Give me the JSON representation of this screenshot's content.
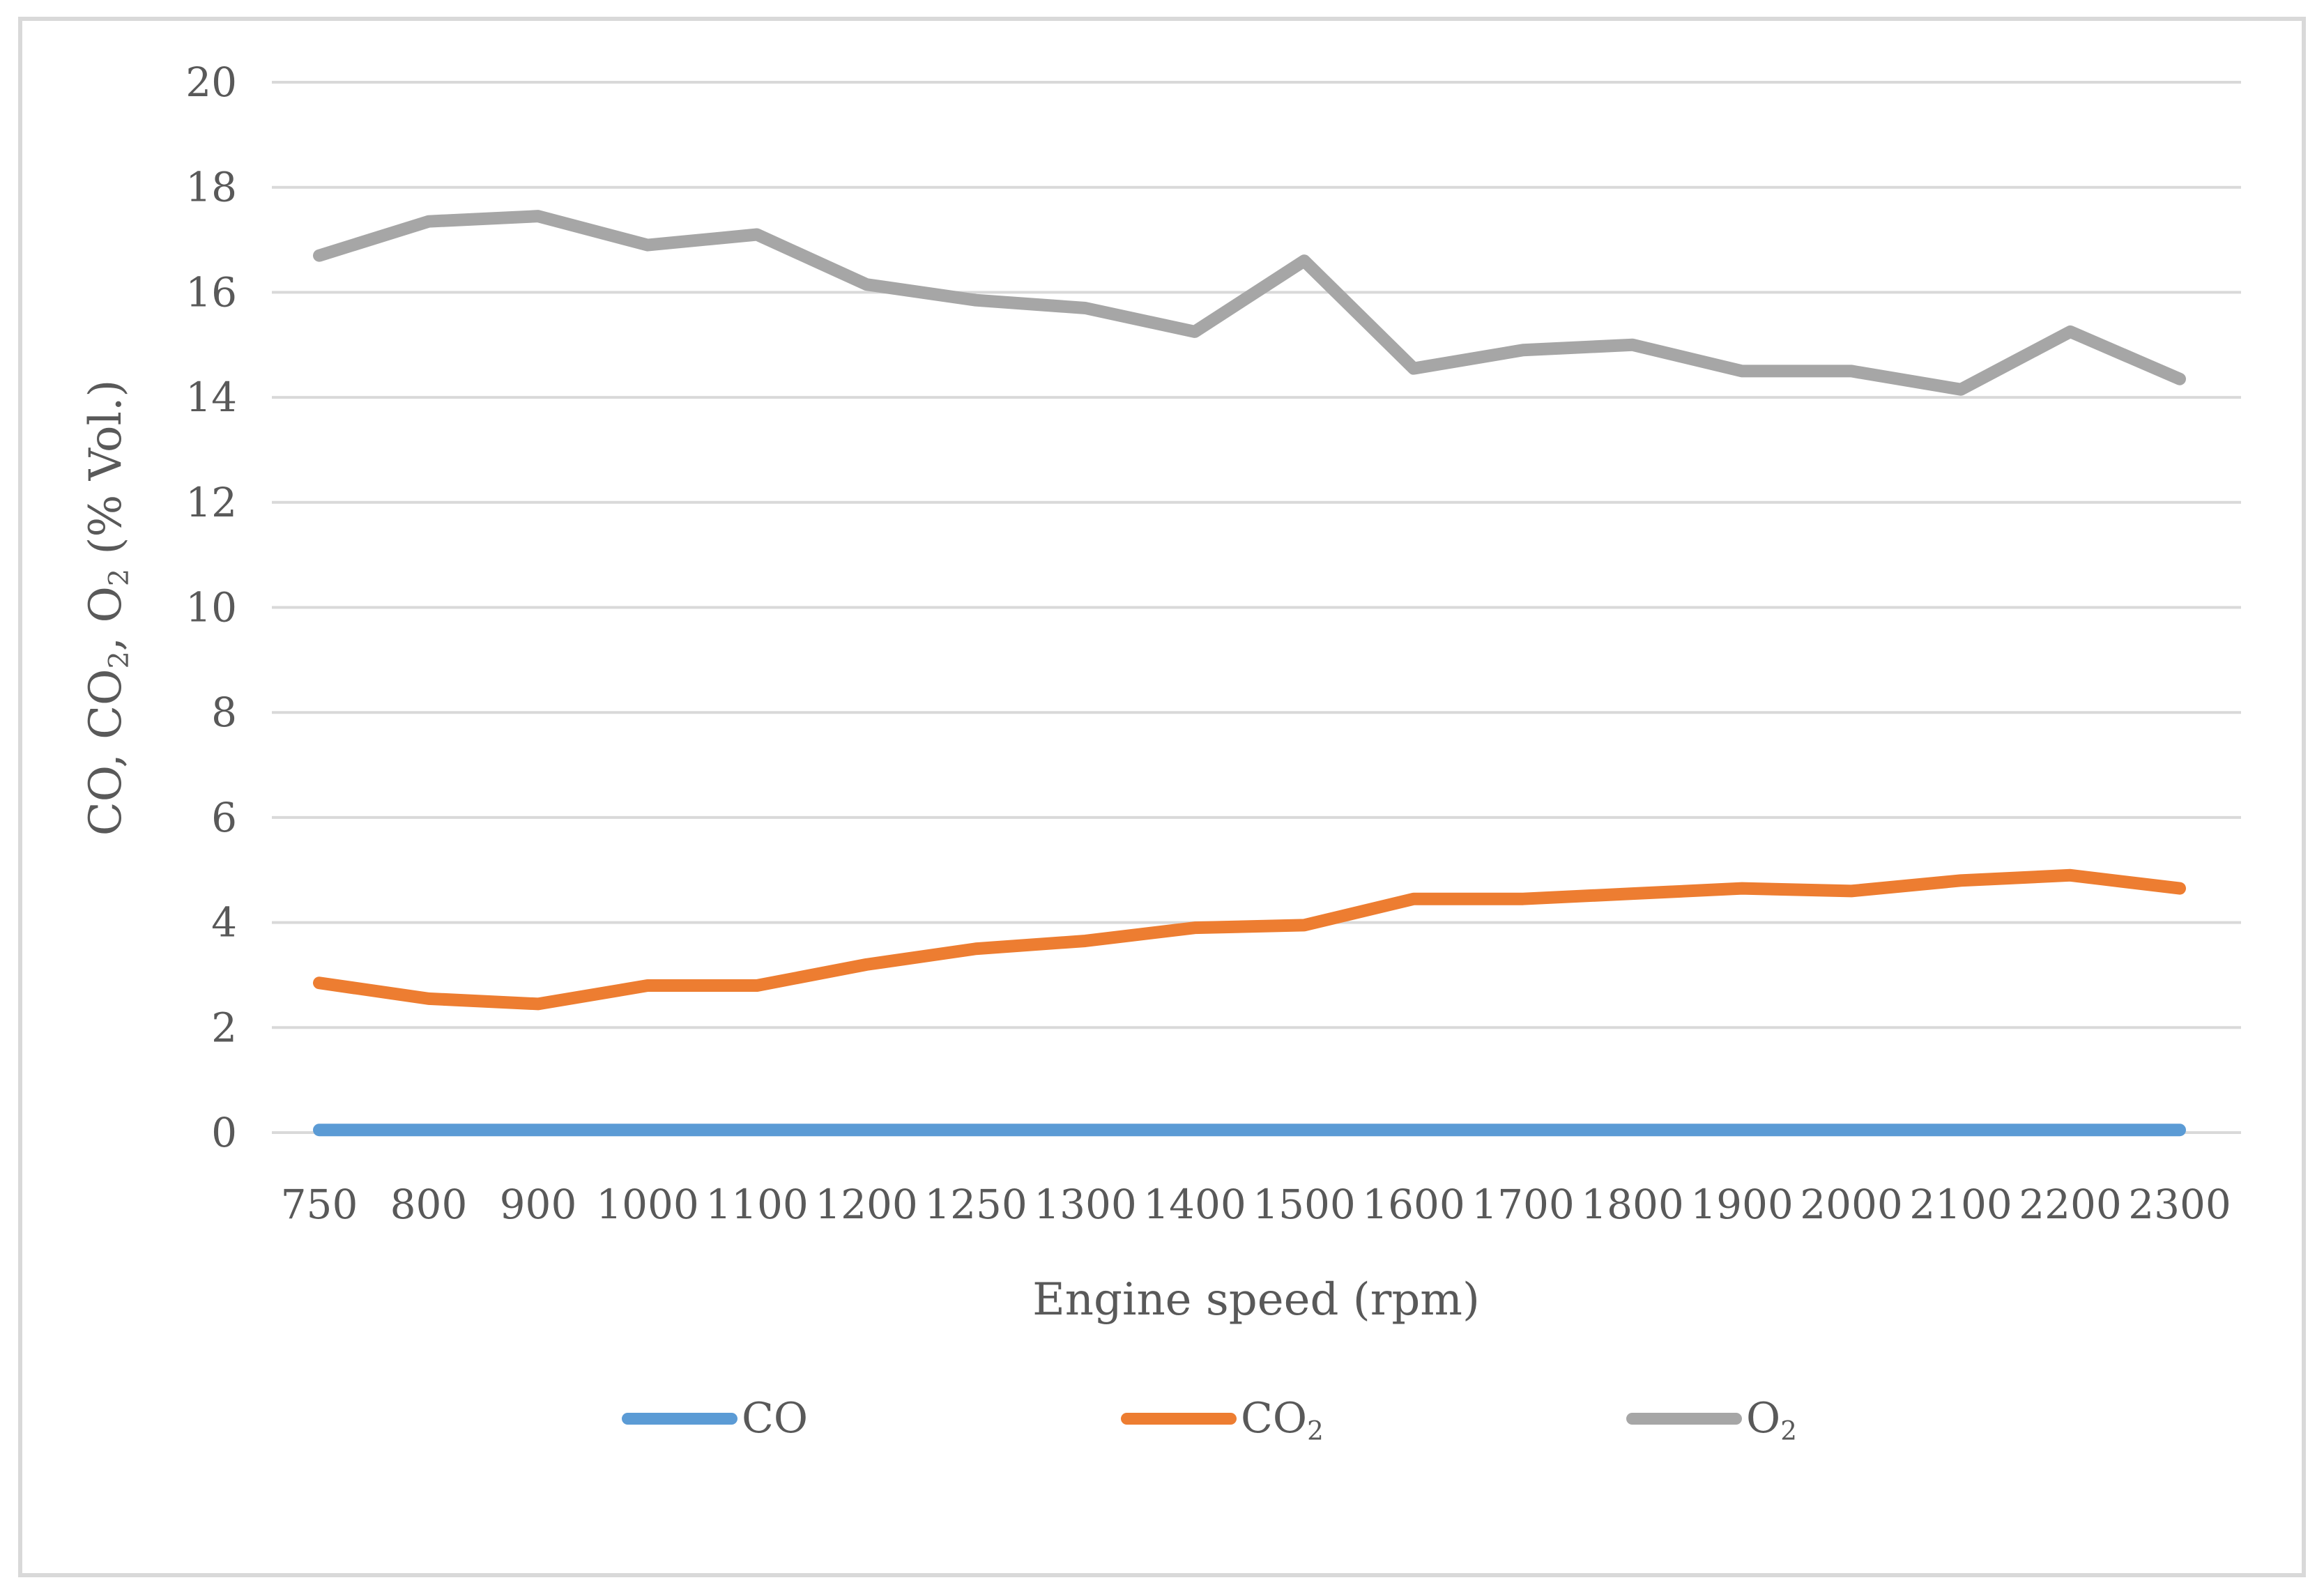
{
  "chart_data": {
    "type": "line",
    "title": "",
    "xlabel": "Engine speed (rpm)",
    "ylabel": "CO, CO2, O2 (% Vol.)",
    "ylabel_parts": [
      {
        "t": "CO, CO"
      },
      {
        "s": "2"
      },
      {
        "t": ", O"
      },
      {
        "s": "2"
      },
      {
        "t": " (% Vol.)"
      }
    ],
    "categories": [
      "750",
      "800",
      "900",
      "1000",
      "1100",
      "1200",
      "1250",
      "1300",
      "1400",
      "1500",
      "1600",
      "1700",
      "1800",
      "1900",
      "2000",
      "2100",
      "2200",
      "2300"
    ],
    "yticks": [
      0,
      2,
      4,
      6,
      8,
      10,
      12,
      14,
      16,
      18,
      20
    ],
    "ylim": [
      0,
      20
    ],
    "grid": "horizontal-only",
    "gridline_color": "#d9d9d9",
    "text_color": "#595959",
    "frame_border_color": "#d9d9d9",
    "legend_position": "bottom",
    "series": [
      {
        "id": "co",
        "name": "CO",
        "label_parts": [
          {
            "t": "CO"
          }
        ],
        "color": "#5b9bd5",
        "values": [
          0.05,
          0.05,
          0.05,
          0.05,
          0.05,
          0.05,
          0.05,
          0.05,
          0.05,
          0.05,
          0.05,
          0.05,
          0.05,
          0.05,
          0.05,
          0.05,
          0.05,
          0.05
        ]
      },
      {
        "id": "co2",
        "name": "CO2",
        "label_parts": [
          {
            "t": "CO"
          },
          {
            "s": "2"
          }
        ],
        "color": "#ed7d31",
        "values": [
          2.85,
          2.55,
          2.45,
          2.8,
          2.8,
          3.2,
          3.5,
          3.65,
          3.9,
          3.95,
          4.45,
          4.45,
          4.55,
          4.65,
          4.6,
          4.8,
          4.9,
          4.65
        ]
      },
      {
        "id": "o2",
        "name": "O2",
        "label_parts": [
          {
            "t": "O"
          },
          {
            "s": "2"
          }
        ],
        "color": "#a6a6a6",
        "values": [
          16.7,
          17.35,
          17.45,
          16.9,
          17.1,
          16.15,
          15.85,
          15.7,
          15.25,
          16.6,
          14.55,
          14.9,
          15.0,
          14.5,
          14.5,
          14.15,
          15.25,
          14.35
        ]
      }
    ]
  }
}
